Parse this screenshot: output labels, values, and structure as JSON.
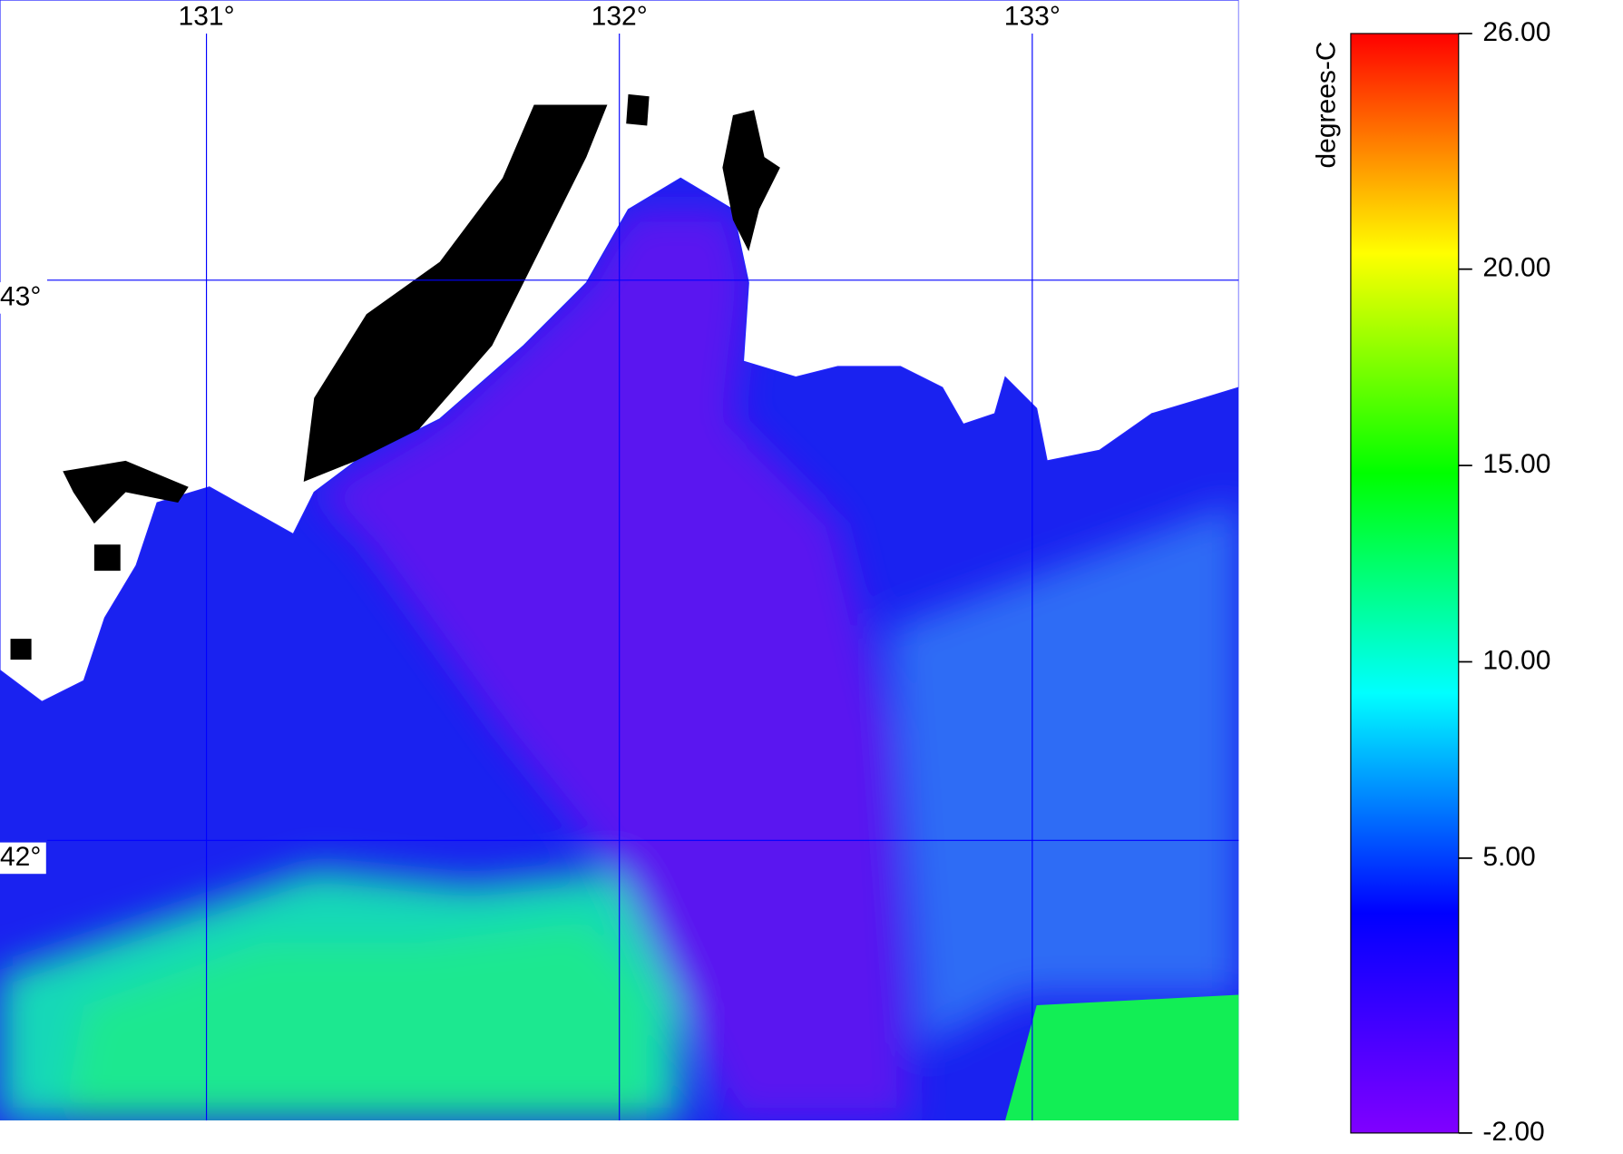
{
  "map": {
    "lonlim": [
      130.5,
      133.5
    ],
    "latlim": [
      41.5,
      43.5
    ],
    "lon_ticks": [
      {
        "value": 131,
        "label": "131°"
      },
      {
        "value": 132,
        "label": "132°"
      },
      {
        "value": 133,
        "label": "133°"
      }
    ],
    "lat_ticks": [
      {
        "value": 43,
        "label": "43°"
      },
      {
        "value": 42,
        "label": "42°"
      }
    ],
    "grid_color": "#0000ff"
  },
  "colorbar": {
    "label": "degrees-C",
    "lim": [
      -2,
      26
    ],
    "ticks": [
      {
        "value": 26,
        "label": "26.00"
      },
      {
        "value": 20,
        "label": "20.00"
      },
      {
        "value": 15,
        "label": "15.00"
      },
      {
        "value": 10,
        "label": "10.00"
      },
      {
        "value": 5,
        "label": "5.00"
      },
      {
        "value": -2,
        "label": "-2.00"
      }
    ],
    "colors": [
      "#8000ff",
      "#0000ff",
      "#00ffff",
      "#00ff00",
      "#ffff00",
      "#ff0000"
    ]
  }
}
